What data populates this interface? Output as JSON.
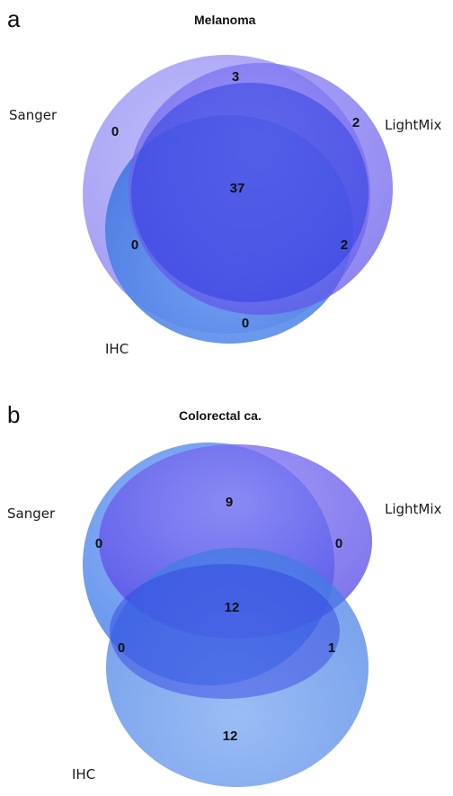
{
  "panels": [
    {
      "letter": "a",
      "title": "Melanoma",
      "sets": {
        "sanger": "Sanger",
        "lightmix": "LightMix",
        "ihc": "IHC"
      },
      "counts": {
        "lightmix_sanger_only": "3",
        "sanger_only": "0",
        "lightmix_only": "2",
        "all_three": "37",
        "sanger_ihc_only": "0",
        "lightmix_ihc_only": "2",
        "ihc_only": "0"
      },
      "colors": {
        "sanger": "#8c86f0",
        "lightmix": "#7a6cf0",
        "ihc": "#4a7fe6",
        "core": "#2f3fe0"
      }
    },
    {
      "letter": "b",
      "title": "Colorectal ca.",
      "sets": {
        "sanger": "Sanger",
        "lightmix": "LightMix",
        "ihc": "IHC"
      },
      "counts": {
        "lightmix_sanger_only": "9",
        "sanger_only": "0",
        "lightmix_only": "0",
        "all_three": "12",
        "sanger_ihc_only": "0",
        "lightmix_ihc_only": "1",
        "ihc_only": "12"
      },
      "colors": {
        "sanger": "#5a8ff0",
        "lightmix": "#6b5cf0",
        "ihc": "#4a86ec",
        "core": "#2f3fe0"
      }
    }
  ]
}
